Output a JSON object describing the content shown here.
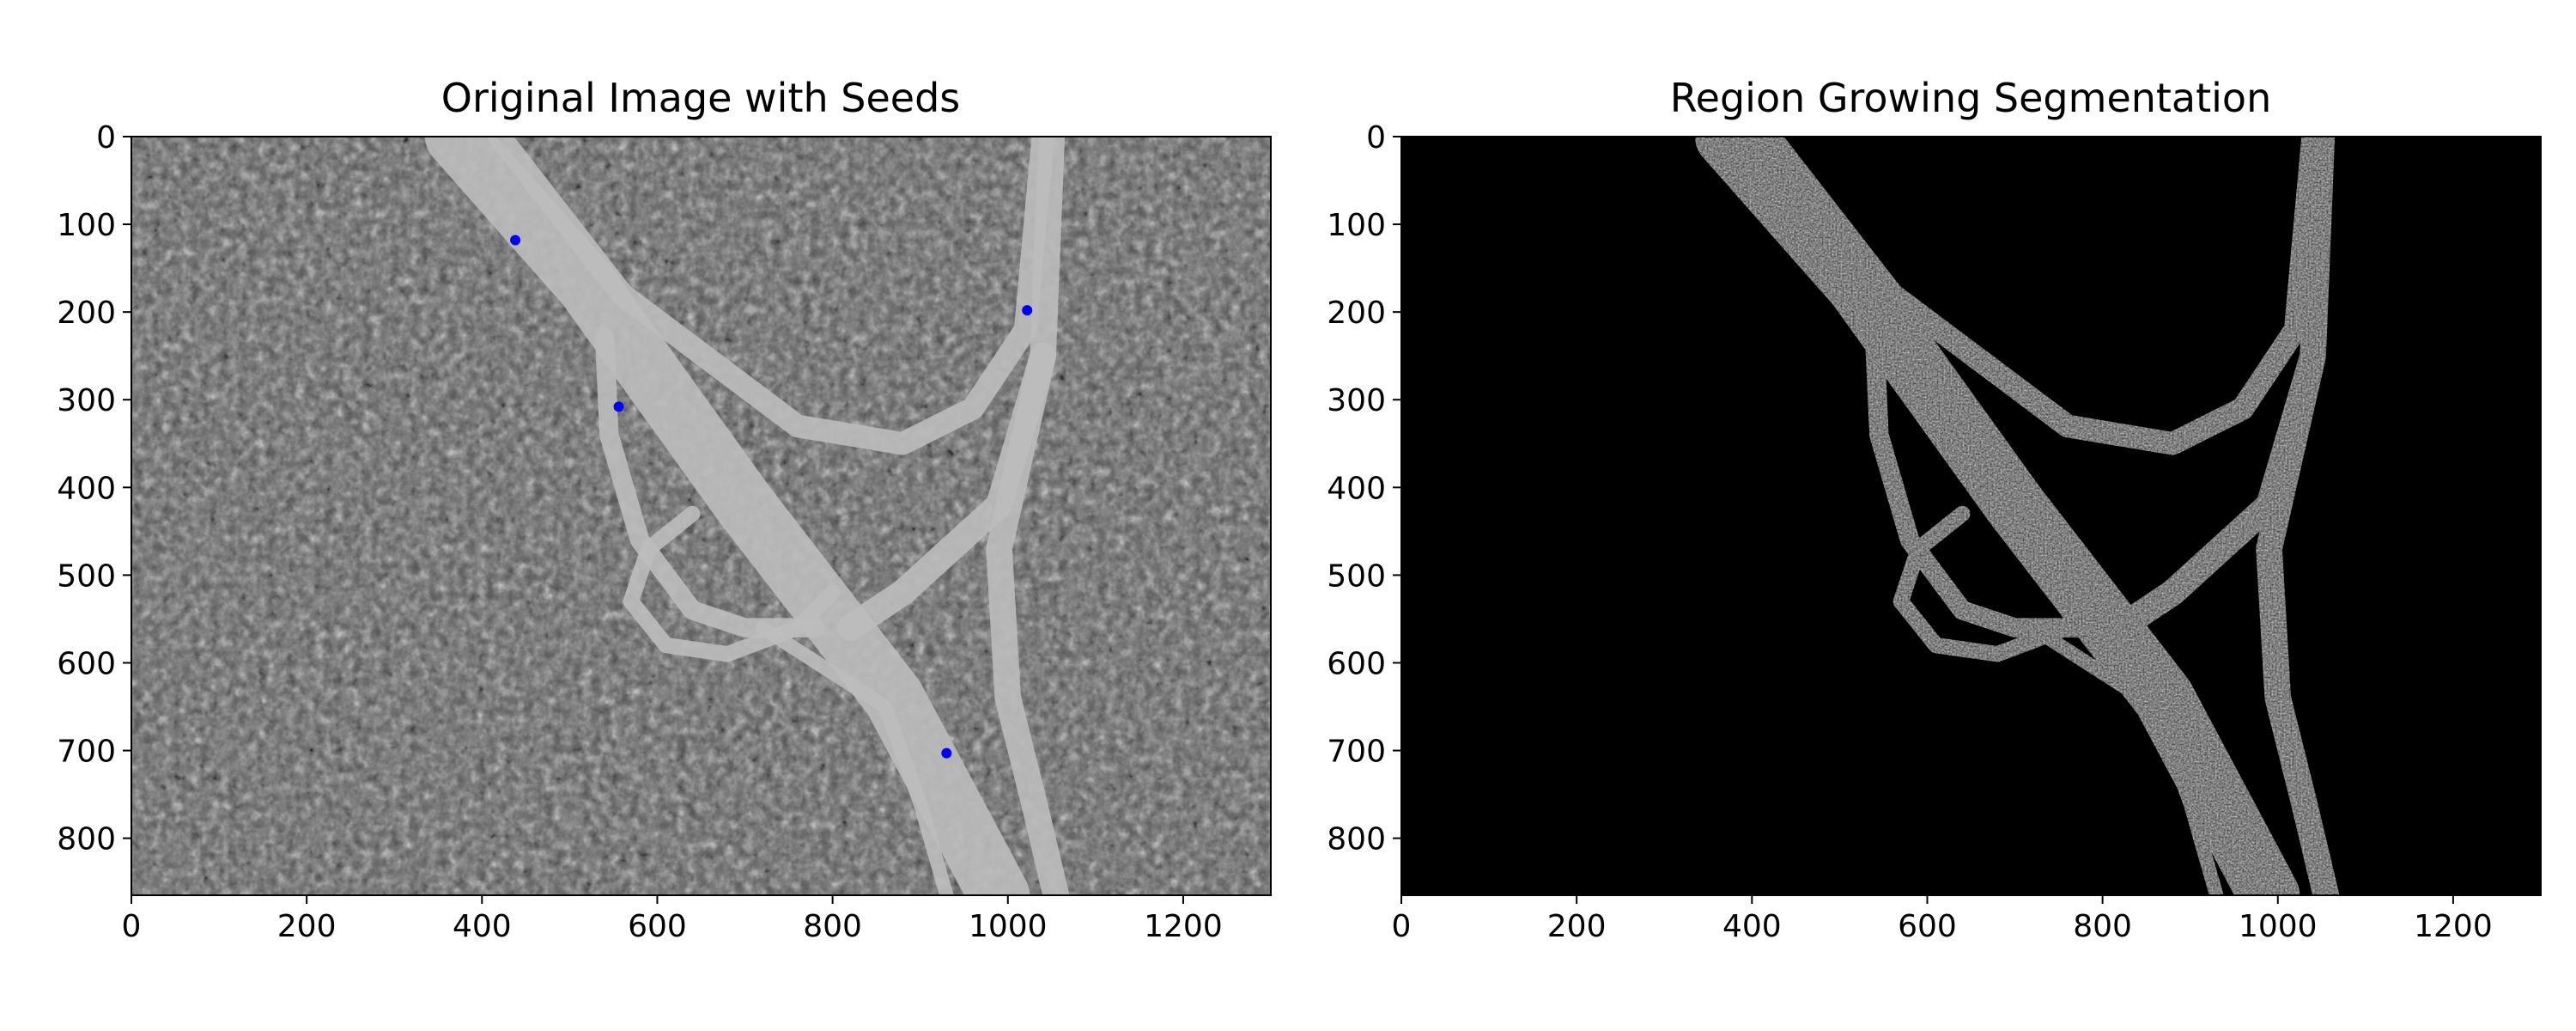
{
  "figure": {
    "background": "#ffffff",
    "panels": [
      {
        "id": "original",
        "title": "Original Image with Seeds",
        "content": "grayscale aerial photograph of a highway interchange surrounded by forest",
        "xlim": [
          0,
          1300
        ],
        "ylim": [
          865,
          0
        ],
        "xticks": [
          0,
          200,
          400,
          600,
          800,
          1000,
          1200
        ],
        "yticks": [
          0,
          100,
          200,
          300,
          400,
          500,
          600,
          700,
          800
        ],
        "seed_color": "#0000ff",
        "seeds": [
          {
            "x": 438,
            "y": 118
          },
          {
            "x": 1022,
            "y": 198
          },
          {
            "x": 556,
            "y": 308
          },
          {
            "x": 930,
            "y": 703
          }
        ]
      },
      {
        "id": "segmentation",
        "title": "Region Growing Segmentation",
        "content": "binary mask: white region-grown road pixels on black background",
        "xlim": [
          0,
          1300
        ],
        "ylim": [
          865,
          0
        ],
        "xticks": [
          0,
          200,
          400,
          600,
          800,
          1000,
          1200
        ],
        "yticks": [
          0,
          100,
          200,
          300,
          400,
          500,
          600,
          700,
          800
        ],
        "mask_color": "#ffffff",
        "background_color": "#000000"
      }
    ]
  }
}
